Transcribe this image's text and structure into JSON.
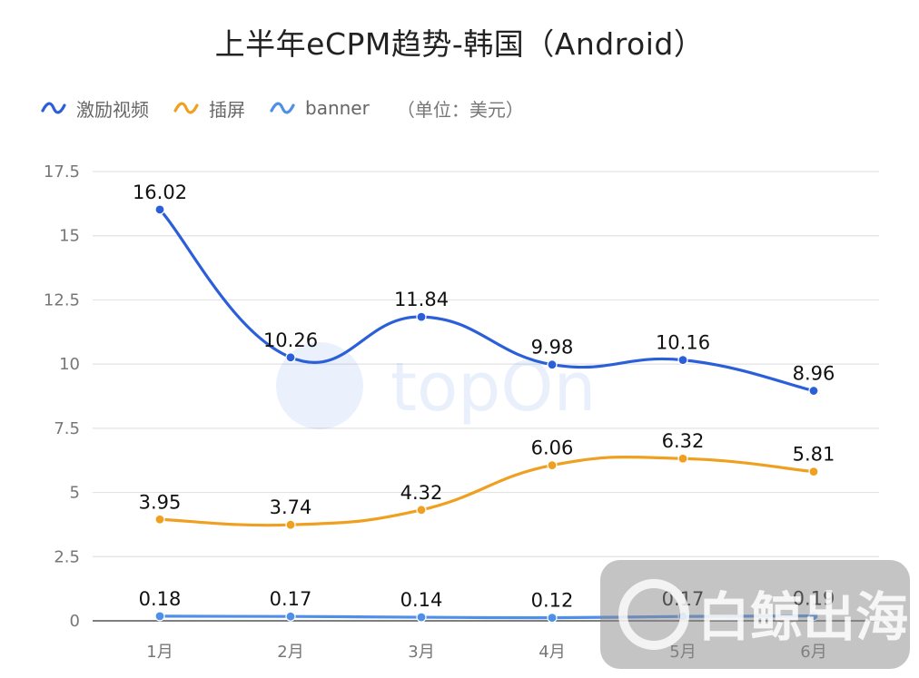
{
  "chart_data": {
    "type": "line",
    "title": "上半年eCPM趋势-韩国（Android）",
    "unit_note": "（单位：美元）",
    "categories": [
      "1月",
      "2月",
      "3月",
      "4月",
      "5月",
      "6月"
    ],
    "series": [
      {
        "name": "激励视频",
        "color": "#2b5fd9",
        "values": [
          16.02,
          10.26,
          11.84,
          9.98,
          10.16,
          8.96
        ]
      },
      {
        "name": "插屏",
        "color": "#f0a020",
        "values": [
          3.95,
          3.74,
          4.32,
          6.06,
          6.32,
          5.81
        ]
      },
      {
        "name": "banner",
        "color": "#4f8fe8",
        "values": [
          0.18,
          0.17,
          0.14,
          0.12,
          0.17,
          0.19
        ]
      }
    ],
    "yticks": [
      0,
      2.5,
      5,
      7.5,
      10,
      12.5,
      15,
      17.5
    ],
    "ylim": [
      0,
      17.5
    ],
    "grid": true,
    "legend_position": "top-left"
  },
  "watermarks": {
    "center": "topOn",
    "bottom_right": "白鲸出海"
  }
}
